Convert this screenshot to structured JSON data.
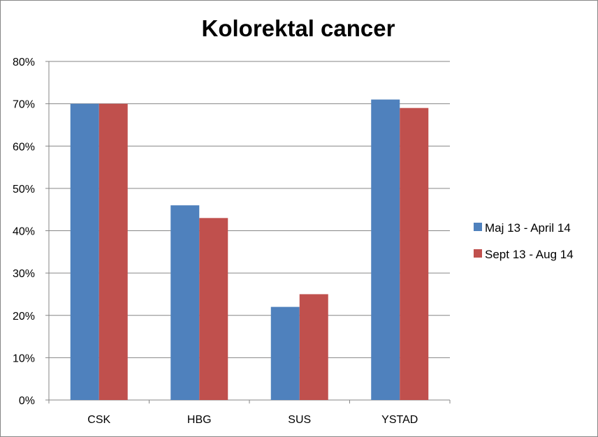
{
  "chart_data": {
    "type": "bar",
    "title": "Kolorektal cancer",
    "xlabel": "",
    "ylabel": "",
    "categories": [
      "CSK",
      "HBG",
      "SUS",
      "YSTAD"
    ],
    "series": [
      {
        "name": "Maj 13 - April 14",
        "color": "#4F81BD",
        "values": [
          70,
          46,
          22,
          71
        ]
      },
      {
        "name": "Sept 13 - Aug 14",
        "color": "#C0504D",
        "values": [
          70,
          43,
          25,
          69
        ]
      }
    ],
    "ylim": [
      0,
      80
    ],
    "yticks": [
      "0%",
      "10%",
      "20%",
      "30%",
      "40%",
      "50%",
      "60%",
      "70%",
      "80%"
    ],
    "grid": true,
    "legend_position": "right"
  }
}
